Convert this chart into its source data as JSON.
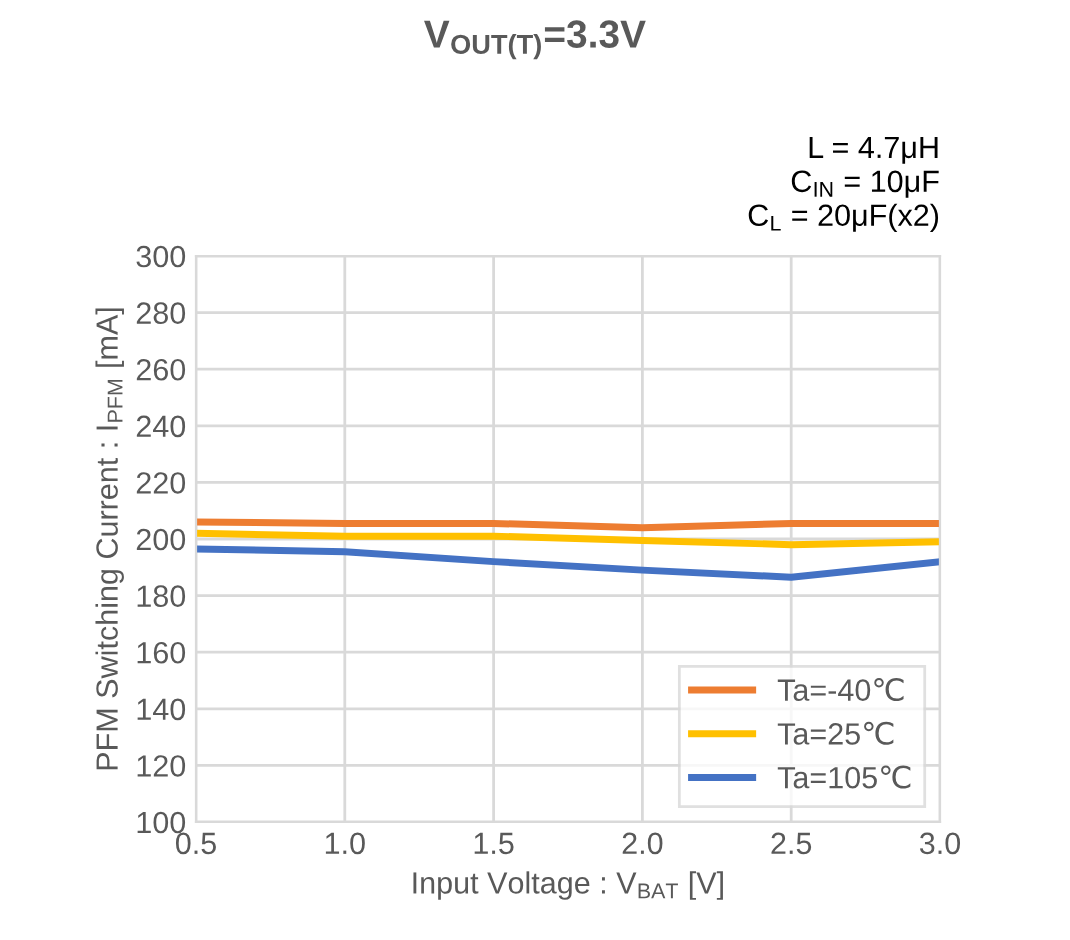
{
  "chart_data": {
    "type": "line",
    "title": "V$_{OUT(T)}$=3.3V",
    "annotations": [
      "L = 4.7μH",
      "C$_{IN}$ = 10μF",
      "C$_{L}$ = 20μF(x2)"
    ],
    "xlabel": "Input Voltage : V$_{BAT}$ [V]",
    "ylabel": "PFM Switching Current : I$_{PFM}$ [mA]",
    "x": [
      0.5,
      1.0,
      1.5,
      2.0,
      2.5,
      3.0
    ],
    "series": [
      {
        "name": "Ta=-40℃",
        "color": "#ed7d31",
        "values": [
          206,
          205.5,
          205.5,
          204,
          205.5,
          205.5
        ]
      },
      {
        "name": "Ta=25℃",
        "color": "#ffc000",
        "values": [
          202,
          201,
          201,
          199.5,
          198,
          199
        ]
      },
      {
        "name": "Ta=105℃",
        "color": "#4472c4",
        "values": [
          196.5,
          195.5,
          192,
          189,
          186.5,
          192
        ]
      }
    ],
    "xlim": [
      0.5,
      3.0
    ],
    "xticks": [
      {
        "value": 0.5,
        "label": "0.5"
      },
      {
        "value": 1.0,
        "label": "1.0"
      },
      {
        "value": 1.5,
        "label": "1.5"
      },
      {
        "value": 2.0,
        "label": "2.0"
      },
      {
        "value": 2.5,
        "label": "2.5"
      },
      {
        "value": 3.0,
        "label": "3.0"
      }
    ],
    "ylim": [
      100,
      300
    ],
    "yticks": [
      100,
      120,
      140,
      160,
      180,
      200,
      220,
      240,
      260,
      280,
      300
    ],
    "grid": true,
    "legend": "bottom right",
    "marker": "none",
    "line_style": "solid"
  }
}
